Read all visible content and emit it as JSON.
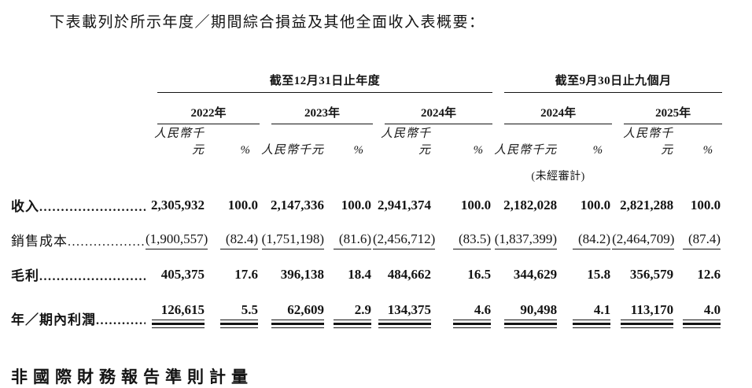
{
  "intro": "下表載列於所示年度／期間綜合損益及其他全面收入表概要：",
  "table": {
    "groups": [
      {
        "label": "截至12月31日止年度",
        "years": [
          "2022年",
          "2023年",
          "2024年"
        ]
      },
      {
        "label": "截至9月30日止九個月",
        "years": [
          "2024年",
          "2025年"
        ]
      }
    ],
    "unit_header": "人民幣千元",
    "pct_header": "%",
    "unaudited_note": "(未經審計)",
    "rows": [
      {
        "label": "收入",
        "values": [
          "2,305,932",
          "100.0",
          "2,147,336",
          "100.0",
          "2,941,374",
          "100.0",
          "2,182,028",
          "100.0",
          "2,821,288",
          "100.0"
        ]
      },
      {
        "label": "銷售成本",
        "values": [
          "(1,900,557)",
          "(82.4)",
          "(1,751,198)",
          "(81.6)",
          "(2,456,712)",
          "(83.5)",
          "(1,837,399)",
          "(84.2)",
          "(2,464,709)",
          "(87.4)"
        ]
      },
      {
        "label": "毛利",
        "values": [
          "405,375",
          "17.6",
          "396,138",
          "18.4",
          "484,662",
          "16.5",
          "344,629",
          "15.8",
          "356,579",
          "12.6"
        ]
      },
      {
        "label": "年／期內利潤",
        "values": [
          "126,615",
          "5.5",
          "62,609",
          "2.9",
          "134,375",
          "4.6",
          "90,498",
          "4.1",
          "113,170",
          "4.0"
        ]
      }
    ]
  },
  "section_heading": "非國際財務報告準則計量"
}
